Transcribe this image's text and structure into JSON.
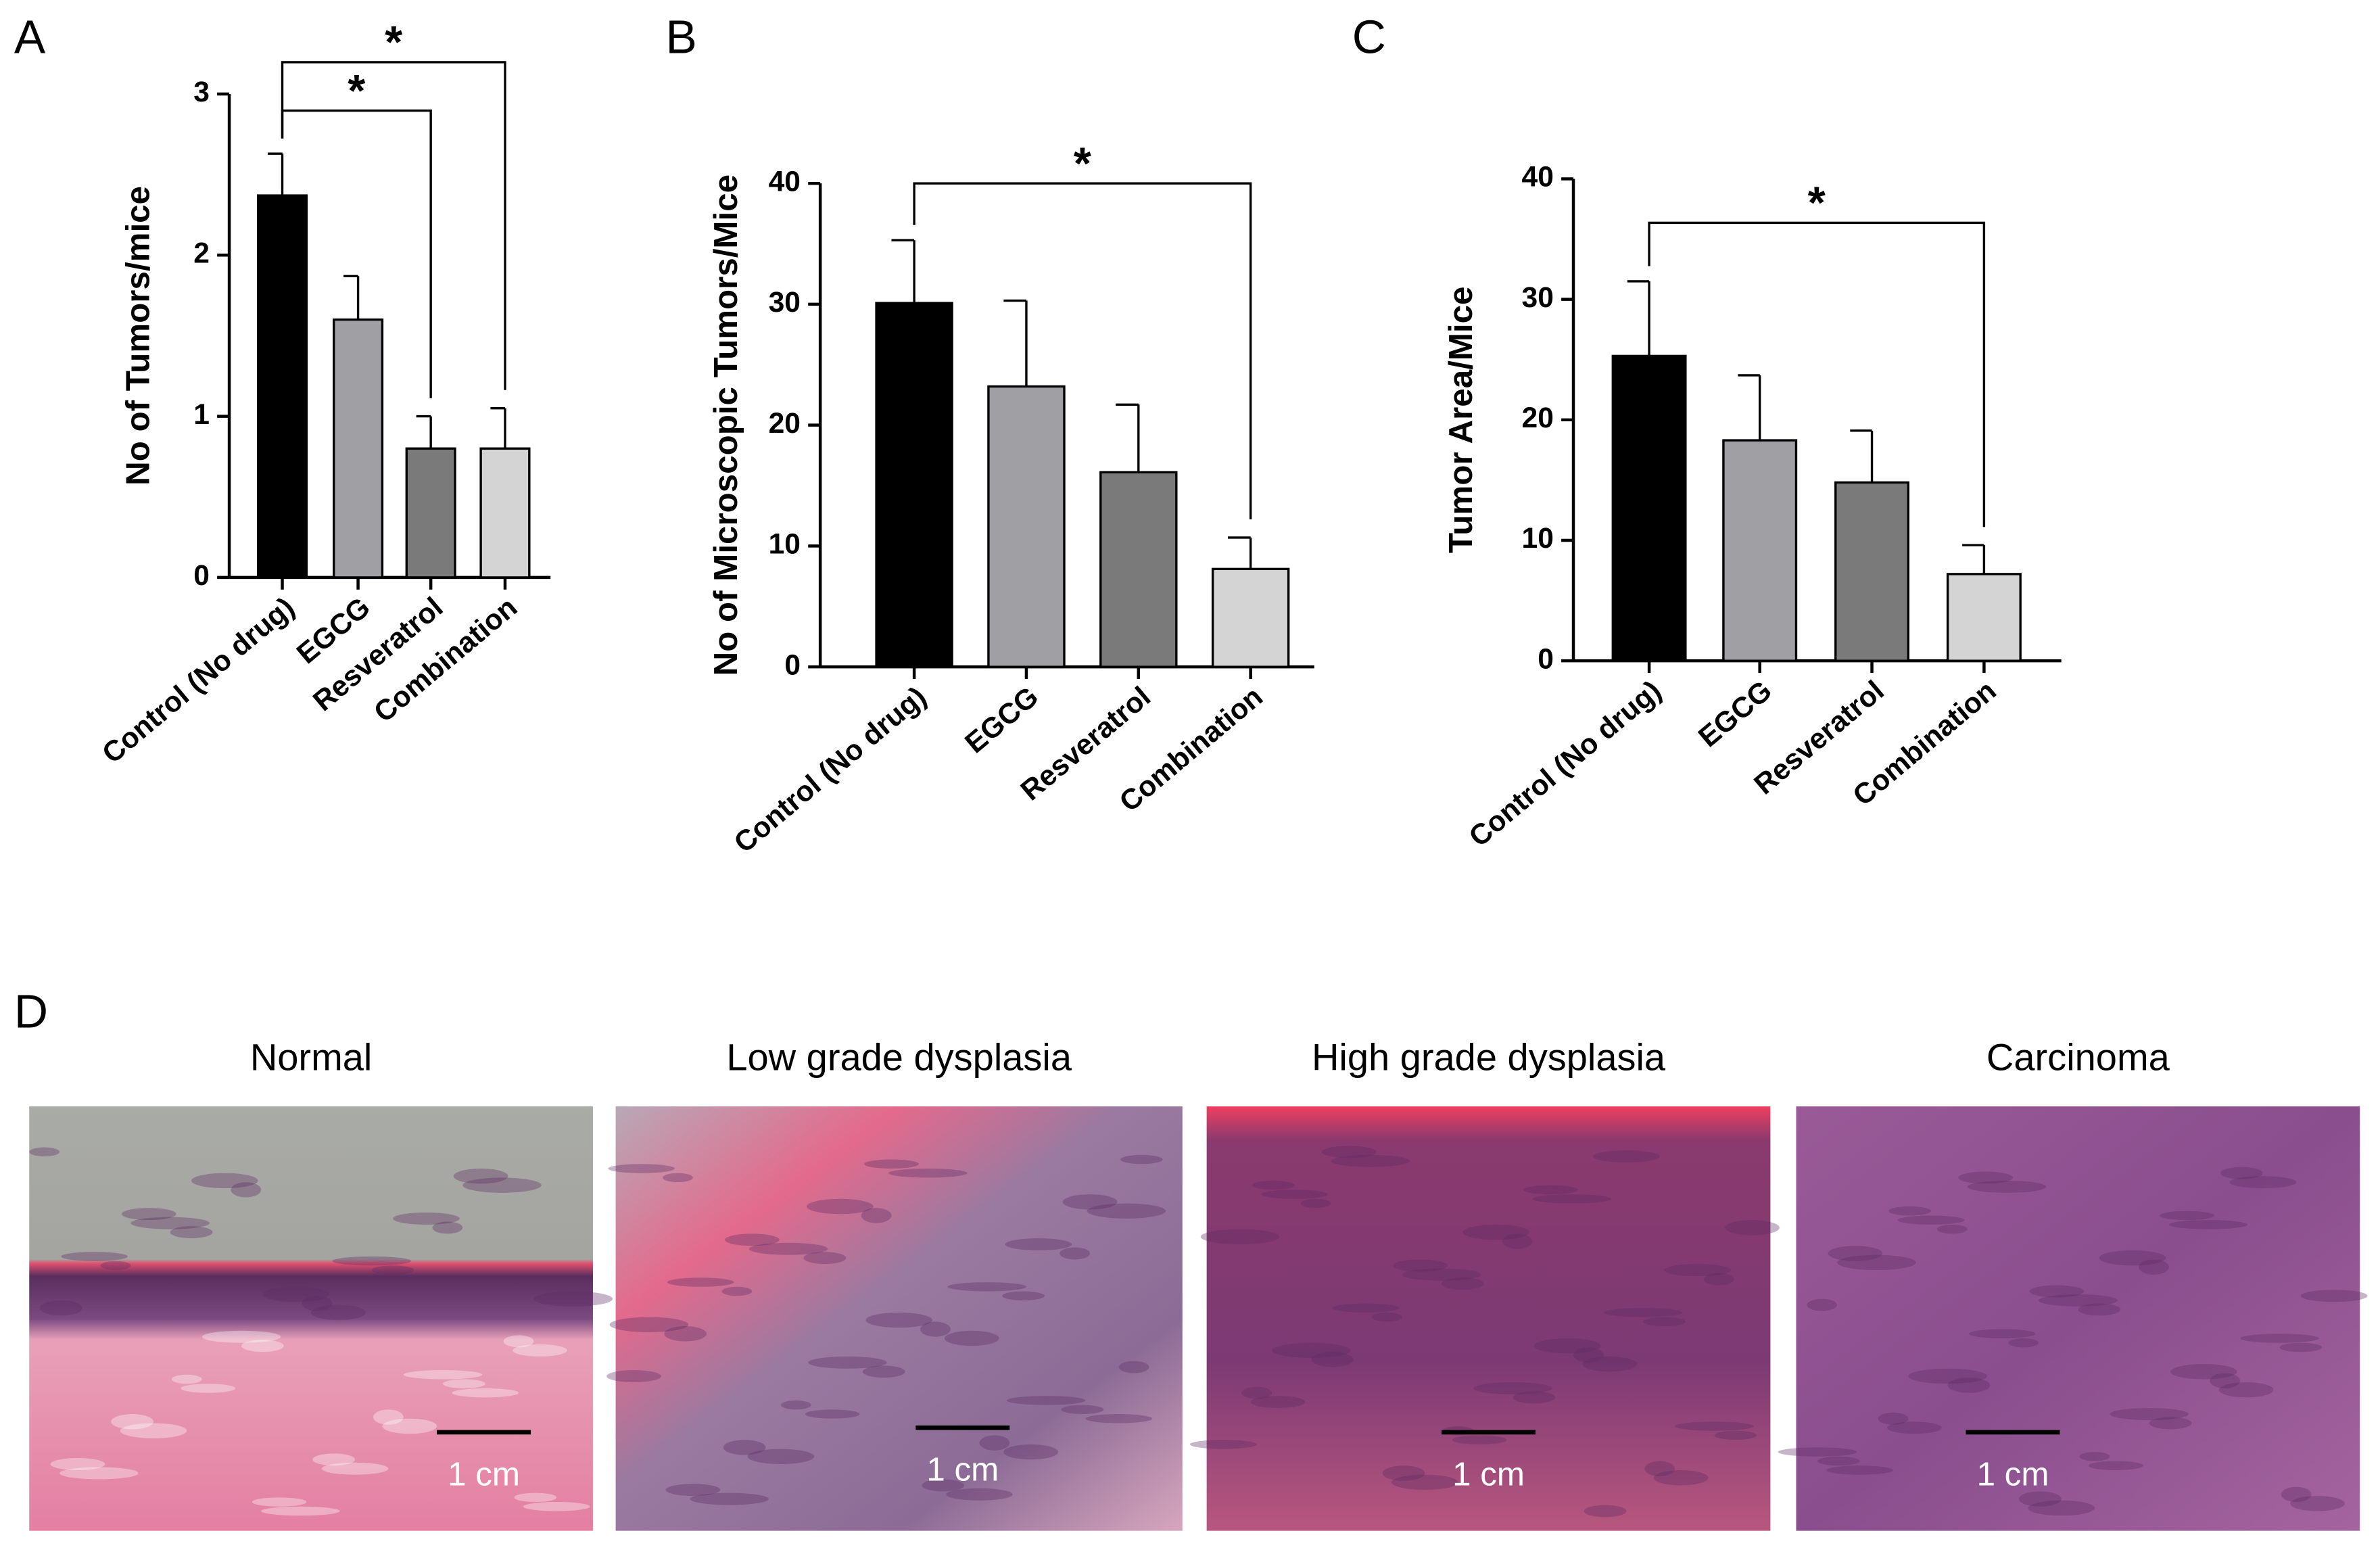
{
  "chart_data": [
    {
      "type": "bar",
      "panel": "A",
      "y_label": "No of Tumors/mice",
      "categories": [
        "Control (No drug)",
        "EGCG",
        "Resveratrol",
        "Combination"
      ],
      "values": [
        2.37,
        1.6,
        0.8,
        0.8
      ],
      "errors": [
        0.26,
        0.27,
        0.2,
        0.25
      ],
      "colors": [
        "#000000",
        "#a0a0a4",
        "#7a7a7a",
        "#d4d4d4"
      ],
      "ylim": [
        0,
        3
      ],
      "yticks": [
        0,
        1,
        2,
        3
      ],
      "significance": [
        {
          "label": "*",
          "from": "Control (No drug)",
          "to": "Resveratrol"
        },
        {
          "label": "*",
          "from": "Control (No drug)",
          "to": "Combination"
        }
      ]
    },
    {
      "type": "bar",
      "panel": "B",
      "y_label": "No of Microscopic Tumors/Mice",
      "categories": [
        "Control (No drug)",
        "EGCG",
        "Resveratrol",
        "Combination"
      ],
      "values": [
        30.1,
        23.2,
        16.1,
        8.1
      ],
      "errors": [
        5.2,
        7.1,
        5.6,
        2.6
      ],
      "colors": [
        "#000000",
        "#a0a0a4",
        "#7a7a7a",
        "#d4d4d4"
      ],
      "ylim": [
        0,
        40
      ],
      "yticks": [
        0,
        10,
        20,
        30,
        40
      ],
      "significance": [
        {
          "label": "*",
          "from": "Control (No drug)",
          "to": "Combination"
        }
      ]
    },
    {
      "type": "bar",
      "panel": "C",
      "y_label": "Tumor Area/Mice",
      "categories": [
        "Control (No drug)",
        "EGCG",
        "Resveratrol",
        "Combination"
      ],
      "values": [
        25.3,
        18.3,
        14.8,
        7.2
      ],
      "errors": [
        6.2,
        5.4,
        4.3,
        2.4
      ],
      "colors": [
        "#000000",
        "#a0a0a4",
        "#7a7a7a",
        "#d4d4d4"
      ],
      "ylim": [
        0,
        40
      ],
      "yticks": [
        0,
        10,
        20,
        30,
        40
      ],
      "significance": [
        {
          "label": "*",
          "from": "Control (No drug)",
          "to": "Combination"
        }
      ]
    }
  ],
  "panel_d": {
    "panel": "D",
    "images": [
      {
        "title": "Normal",
        "scale_label": "1 cm"
      },
      {
        "title": "Low grade dysplasia",
        "scale_label": "1 cm"
      },
      {
        "title": "High grade dysplasia",
        "scale_label": "1 cm"
      },
      {
        "title": "Carcinoma",
        "scale_label": "1 cm"
      }
    ]
  }
}
